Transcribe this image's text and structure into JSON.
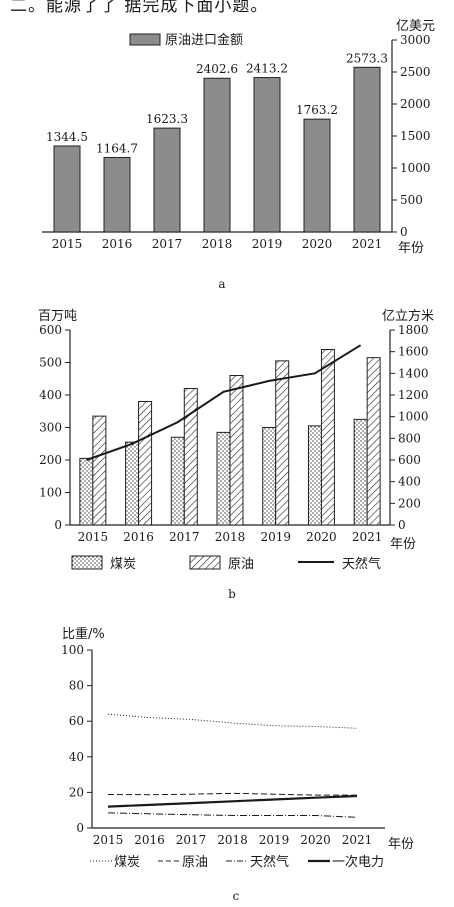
{
  "header_text": "二。能源了了 据完成下面小题。",
  "chart_data": [
    {
      "type": "bar",
      "panel_label": "a",
      "categories": [
        "2015",
        "2016",
        "2017",
        "2018",
        "2019",
        "2020",
        "2021"
      ],
      "series": [
        {
          "name": "原油进口金额",
          "values": [
            1344.5,
            1164.7,
            1623.3,
            2402.6,
            2413.2,
            1763.2,
            2573.3
          ]
        }
      ],
      "data_labels": [
        "1344.5",
        "1164.7",
        "1623.3",
        "2402.6",
        "2413.2",
        "1763.2",
        "2573.3"
      ],
      "xlabel": "年份",
      "ylabel_right": "亿美元",
      "ylim": [
        0,
        3000
      ],
      "yticks": [
        "0",
        "500",
        "1000",
        "1500",
        "2000",
        "2500",
        "3000"
      ],
      "axis_position": "right",
      "legend_position": "top-left",
      "bar_color": "#8c8c8c"
    },
    {
      "type": "bar+line",
      "panel_label": "b",
      "categories": [
        "2015",
        "2016",
        "2017",
        "2018",
        "2019",
        "2020",
        "2021"
      ],
      "series": [
        {
          "name": "煤炭",
          "axis": "left",
          "kind": "bar",
          "pattern": "dots",
          "values": [
            205,
            255,
            270,
            285,
            300,
            305,
            325
          ]
        },
        {
          "name": "原油",
          "axis": "left",
          "kind": "bar",
          "pattern": "hatch",
          "values": [
            335,
            380,
            420,
            460,
            505,
            540,
            515
          ]
        },
        {
          "name": "天然气",
          "axis": "right",
          "kind": "line",
          "values": [
            600,
            750,
            950,
            1230,
            1330,
            1400,
            1660
          ]
        }
      ],
      "ylabel_left": "百万吨",
      "ylabel_right": "亿立方米",
      "xlabel": "年份",
      "ylim_left": [
        0,
        600
      ],
      "ylim_right": [
        0,
        1800
      ],
      "yticks_left": [
        "0",
        "100",
        "200",
        "300",
        "400",
        "500",
        "600"
      ],
      "yticks_right": [
        "0",
        "200",
        "400",
        "600",
        "800",
        "1000",
        "1200",
        "1400",
        "1600",
        "1800"
      ],
      "legend_position": "bottom"
    },
    {
      "type": "line",
      "panel_label": "c",
      "x": [
        "2015",
        "2016",
        "2017",
        "2018",
        "2019",
        "2020",
        "2021"
      ],
      "series": [
        {
          "name": "煤炭",
          "style": "dotted",
          "values": [
            64,
            62,
            61,
            59,
            57.5,
            57,
            56
          ]
        },
        {
          "name": "原油",
          "style": "dashed",
          "values": [
            18.8,
            18.7,
            19,
            19.5,
            19,
            18.5,
            18.5
          ]
        },
        {
          "name": "天然气",
          "style": "dashdot",
          "values": [
            8.5,
            8,
            7.5,
            7,
            7,
            7,
            6
          ]
        },
        {
          "name": "一次电力",
          "style": "solid",
          "values": [
            12,
            13,
            14,
            15,
            16,
            17,
            18
          ]
        }
      ],
      "ylabel": "比重/%",
      "xlabel": "年份",
      "ylim": [
        0,
        100
      ],
      "yticks": [
        "0",
        "20",
        "40",
        "60",
        "80",
        "100"
      ],
      "legend_position": "bottom"
    }
  ]
}
